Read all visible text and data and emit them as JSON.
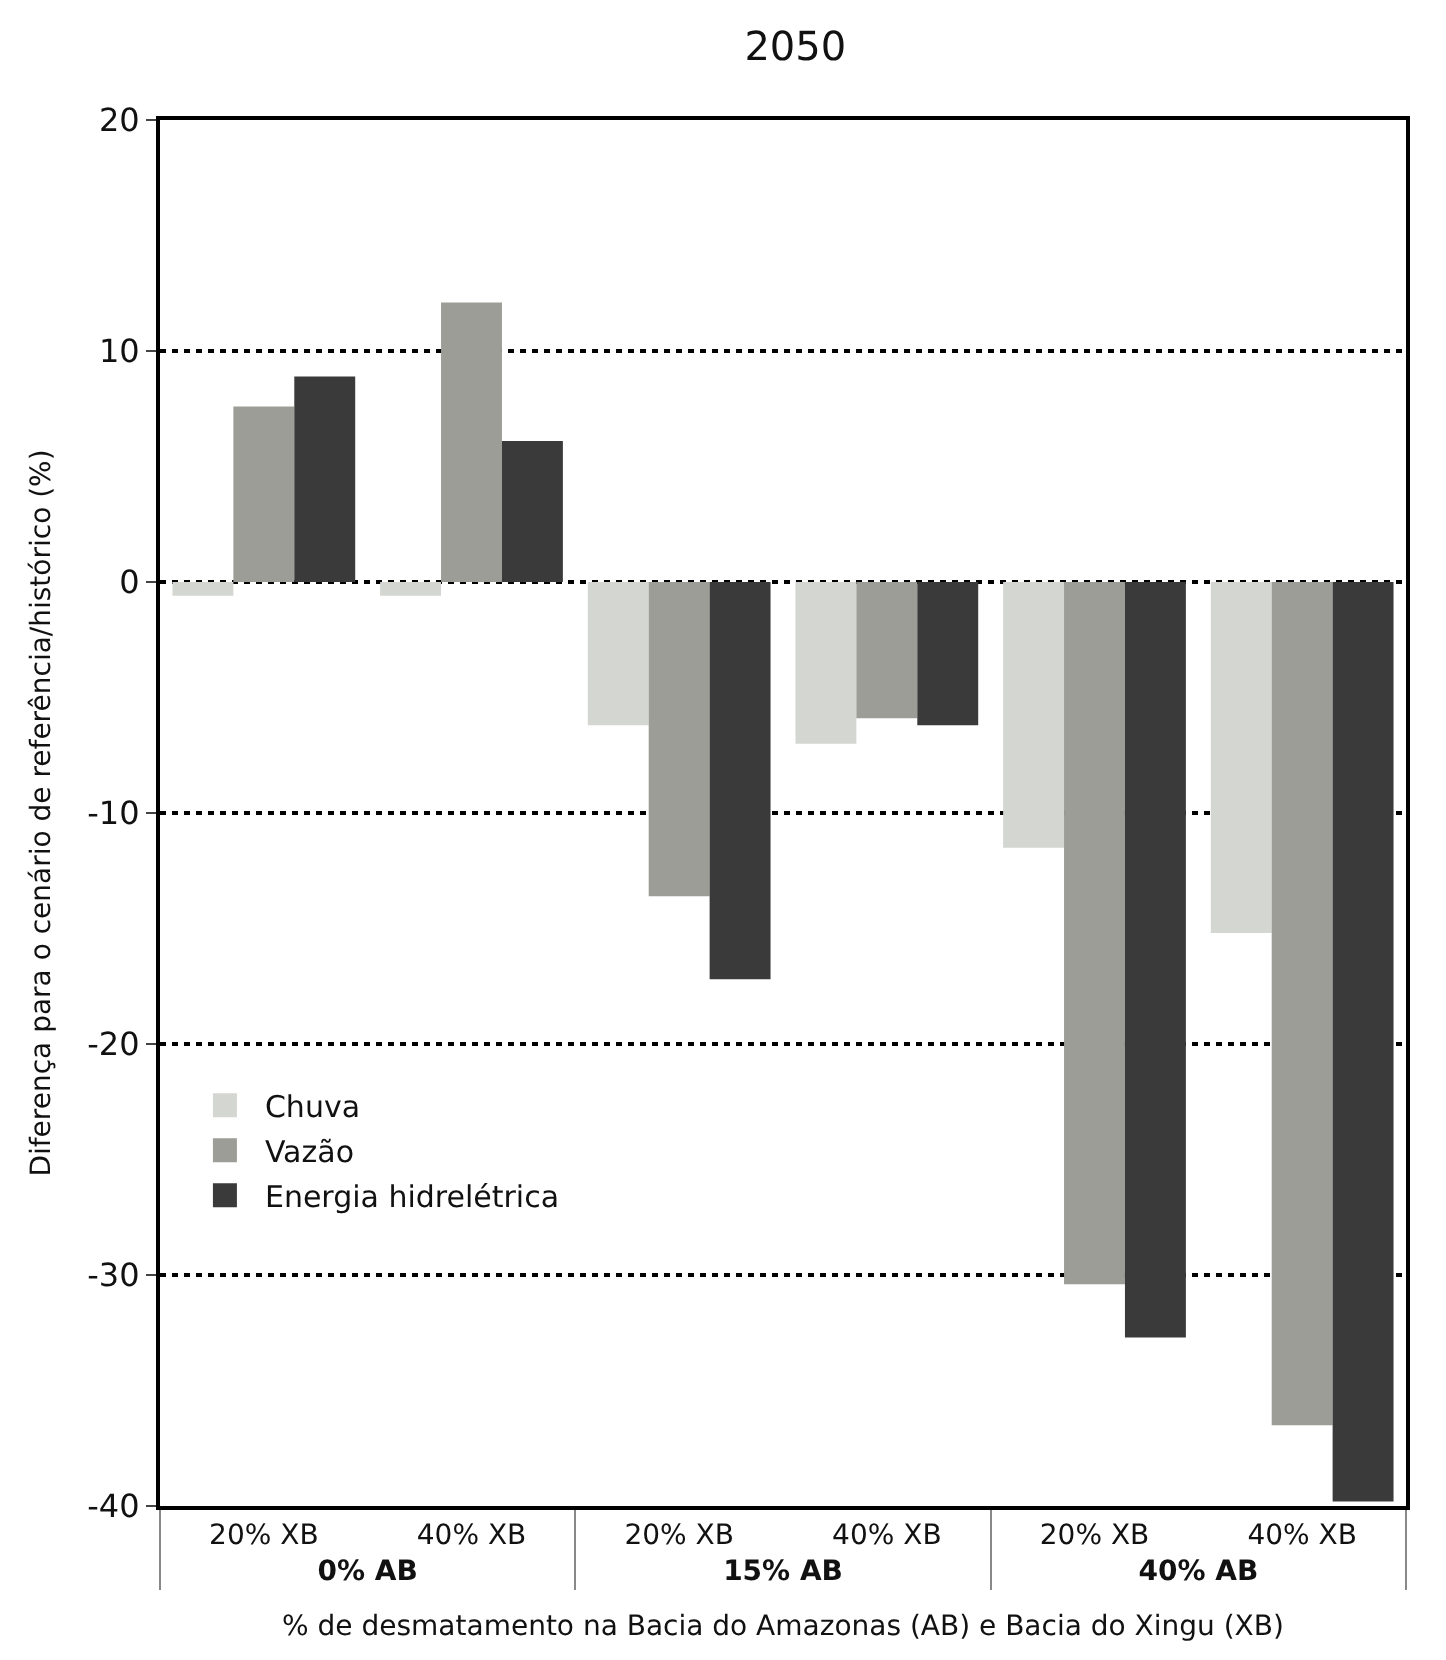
{
  "chart_data": {
    "type": "bar",
    "title": "2050",
    "xlabel": "% de desmatamento na Bacia do Amazonas (AB) e Bacia do Xingu (XB)",
    "ylabel": "Diferença para o cenário de referência/histórico (%)",
    "categories": [
      "20% XB",
      "40% XB",
      "20% XB",
      "40% XB",
      "20% XB",
      "40% XB"
    ],
    "annotations": [
      "0% AB",
      "15% AB",
      "40% AB"
    ],
    "series": [
      {
        "name": "Chuva",
        "color": "#d4d6d2",
        "values": [
          -0.6,
          -0.6,
          -6.2,
          -7.0,
          -11.5,
          -15.2
        ]
      },
      {
        "name": "Vazão",
        "color": "#9c9d96",
        "values": [
          7.6,
          12.1,
          -13.6,
          -5.9,
          -30.4,
          -36.5
        ]
      },
      {
        "name": "Energia hidrelétrica",
        "color": "#3a3a3a",
        "values": [
          8.9,
          6.1,
          -17.2,
          -6.2,
          -32.7,
          -39.8
        ]
      }
    ],
    "ylim": [
      -40,
      20
    ],
    "yticks": [
      -40,
      -30,
      -20,
      -10,
      0,
      10,
      20
    ],
    "grid": "y",
    "legend": "bottom left"
  }
}
